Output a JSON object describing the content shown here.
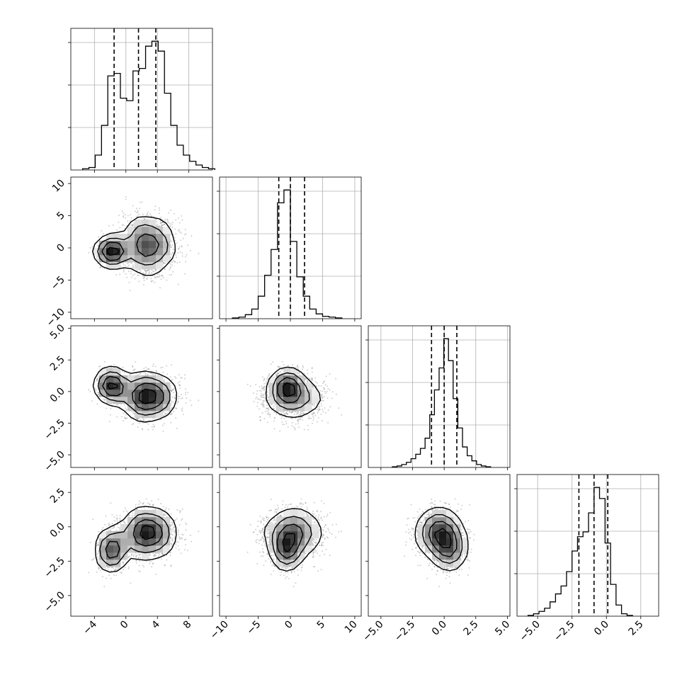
{
  "chart_data": {
    "type": "corner",
    "title": "",
    "variables": [
      {
        "name": "",
        "range": [
          -7,
          11
        ],
        "ticks": [
          -4,
          0,
          4,
          8
        ],
        "tick_labels": [
          "−4",
          "0",
          "4",
          "8"
        ],
        "quantiles": [
          -1.5,
          1.6,
          3.8
        ],
        "hist_edges_start": -5.5,
        "hist_bin_width": 0.8,
        "hist_counts": [
          5,
          10,
          60,
          180,
          380,
          390,
          290,
          280,
          400,
          410,
          500,
          520,
          480,
          310,
          180,
          100,
          60,
          35,
          20,
          10,
          5
        ]
      },
      {
        "name": "",
        "range": [
          -11,
          11
        ],
        "ticks": [
          -10,
          -5,
          0,
          5,
          10
        ],
        "tick_labels": [
          "−10",
          "−5",
          "0",
          "5",
          "10"
        ],
        "quantiles": [
          -1.8,
          0.0,
          2.2
        ],
        "hist_edges_start": -9,
        "hist_bin_width": 1,
        "hist_counts": [
          5,
          10,
          25,
          60,
          140,
          270,
          430,
          720,
          800,
          480,
          260,
          140,
          60,
          30,
          15,
          10,
          5
        ]
      },
      {
        "name": "",
        "range": [
          -6,
          5.2
        ],
        "ticks": [
          -5,
          -2.5,
          0,
          2.5,
          5
        ],
        "tick_labels": [
          "−5.0",
          "−2.5",
          "0.0",
          "2.5",
          "5.0"
        ],
        "quantiles": [
          -1.0,
          0.0,
          1.0
        ],
        "hist_edges_start": -4.1,
        "hist_bin_width": 0.37,
        "hist_counts": [
          5,
          10,
          20,
          35,
          60,
          90,
          130,
          200,
          360,
          530,
          680,
          880,
          730,
          470,
          270,
          140,
          80,
          45,
          20,
          10,
          5
        ]
      },
      {
        "name": "",
        "range": [
          -6.5,
          3.8
        ],
        "ticks": [
          -5,
          -2.5,
          0,
          2.5
        ],
        "tick_labels": [
          "−5.0",
          "−2.5",
          "0.0",
          "2.5"
        ],
        "quantiles": [
          -2.0,
          -0.9,
          0.1
        ],
        "hist_edges_start": -5.7,
        "hist_bin_width": 0.4,
        "hist_counts": [
          5,
          15,
          30,
          50,
          90,
          140,
          190,
          280,
          410,
          500,
          530,
          650,
          810,
          740,
          460,
          200,
          70,
          15,
          5
        ]
      }
    ],
    "density_contours": "2D joint density with filled grayscale bins, 4 contour levels and scattered samples for each variable pair",
    "grid": true
  }
}
